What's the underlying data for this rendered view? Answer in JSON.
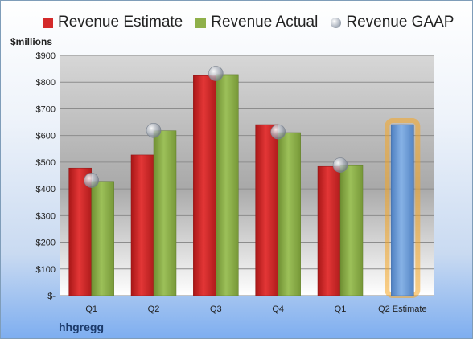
{
  "legend": {
    "estimate": "Revenue Estimate",
    "actual": "Revenue Actual",
    "gaap": "Revenue GAAP"
  },
  "unit_label": "$millions",
  "company": "hhgregg",
  "colors": {
    "estimate": "#d42a2a",
    "actual": "#8fb04a",
    "gaap": "#b3b9c2",
    "projected": "#6f9fd8",
    "highlight": "#f5a623"
  },
  "chart_data": {
    "type": "bar",
    "categories": [
      "Q1",
      "Q2",
      "Q3",
      "Q4",
      "Q1",
      "Q2 Estimate"
    ],
    "series": [
      {
        "name": "Revenue Estimate",
        "values": [
          478,
          527,
          827,
          641,
          484,
          641
        ]
      },
      {
        "name": "Revenue Actual",
        "values": [
          428,
          618,
          828,
          611,
          487,
          null
        ]
      },
      {
        "name": "Revenue GAAP",
        "values": [
          432,
          619,
          832,
          614,
          489,
          null
        ]
      }
    ],
    "yticks": [
      "$900",
      "$800",
      "$700",
      "$600",
      "$500",
      "$400",
      "$300",
      "$200",
      "$100",
      "$-"
    ],
    "ylim": [
      0,
      900
    ],
    "grid": true,
    "legend_position": "top"
  }
}
